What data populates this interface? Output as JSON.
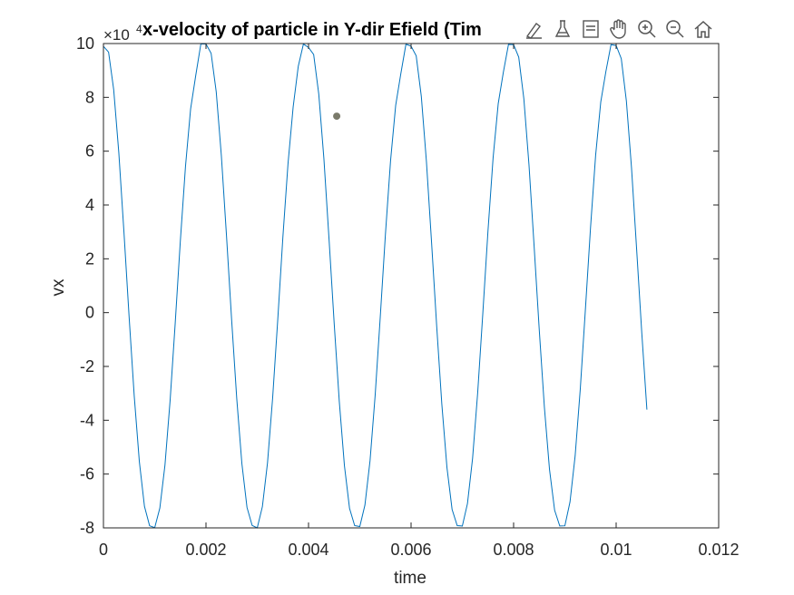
{
  "chart_data": {
    "type": "line",
    "title": "x-velocity of particle in Y-dir Efield (Tim",
    "xlabel": "time",
    "ylabel": "vx",
    "xlim": [
      0,
      0.012
    ],
    "ylim": [
      -8,
      10
    ],
    "y_exponent_base": "×10",
    "y_exponent_power": "4",
    "x_ticks": [
      "0",
      "0.002",
      "0.004",
      "0.006",
      "0.008",
      "0.01",
      "0.012"
    ],
    "y_ticks": [
      "10",
      "8",
      "6",
      "4",
      "2",
      "0",
      "-2",
      "-4",
      "-6",
      "-8"
    ],
    "x_tick_values": [
      0,
      0.002,
      0.004,
      0.006,
      0.008,
      0.01,
      0.012
    ],
    "y_tick_values": [
      10,
      8,
      6,
      4,
      2,
      0,
      -2,
      -4,
      -6,
      -8
    ],
    "series": [
      {
        "color": "#0072BD",
        "x": [
          0.0,
          0.0001,
          0.0002,
          0.0003,
          0.0004,
          0.0005,
          0.0006,
          0.0007,
          0.0008,
          0.0009,
          0.001,
          0.0011,
          0.0012,
          0.0013,
          0.0014,
          0.0015,
          0.0016,
          0.0017,
          0.0018,
          0.0019,
          0.002,
          0.0021,
          0.0022,
          0.0023,
          0.0024,
          0.0025,
          0.0026,
          0.0027,
          0.0028,
          0.0029,
          0.003,
          0.0031,
          0.0032,
          0.0033,
          0.0034,
          0.0035,
          0.0036,
          0.0037,
          0.0038,
          0.0039,
          0.004,
          0.0041,
          0.0042,
          0.0043,
          0.0044,
          0.0045,
          0.0046,
          0.0047,
          0.0048,
          0.0049,
          0.005,
          0.0051,
          0.0052,
          0.0053,
          0.0054,
          0.0055,
          0.0056,
          0.0057,
          0.0058,
          0.0059,
          0.006,
          0.0061,
          0.0062,
          0.0063,
          0.0064,
          0.0065,
          0.0066,
          0.0067,
          0.0068,
          0.0069,
          0.007,
          0.0071,
          0.0072,
          0.0073,
          0.0074,
          0.0075,
          0.0076,
          0.0077,
          0.0078,
          0.0079,
          0.008,
          0.0081,
          0.0082,
          0.0083,
          0.0084,
          0.0085,
          0.0086,
          0.0087,
          0.0088,
          0.0089,
          0.009,
          0.0091,
          0.0092,
          0.0093,
          0.0094,
          0.0095,
          0.0096,
          0.0097,
          0.0098,
          0.0099,
          0.01,
          0.0101,
          0.0102,
          0.0103,
          0.0104,
          0.0105,
          0.0106
        ],
        "y": [
          9.898,
          9.681,
          8.282,
          5.937,
          2.99,
          -0.139,
          -3.09,
          -5.533,
          -7.2,
          -7.921,
          -7.992,
          -7.263,
          -5.662,
          -3.275,
          -0.383,
          2.668,
          5.429,
          7.568,
          8.812,
          9.985,
          9.982,
          9.638,
          8.202,
          5.828,
          2.862,
          -0.262,
          -3.195,
          -5.609,
          -7.24,
          -7.908,
          -8.0,
          -7.21,
          -5.582,
          -3.171,
          -0.26,
          2.812,
          5.538,
          7.637,
          9.154,
          9.98,
          9.853,
          9.593,
          8.119,
          5.718,
          2.733,
          -0.386,
          -3.3,
          -5.683,
          -7.278,
          -7.915,
          -7.949,
          -7.154,
          -5.5,
          -3.066,
          -0.137,
          2.914,
          5.645,
          7.703,
          8.878,
          9.975,
          9.902,
          9.545,
          8.034,
          5.606,
          2.603,
          -0.509,
          -3.403,
          -5.755,
          -7.312,
          -7.917,
          -7.931,
          -7.096,
          -5.415,
          -2.96,
          -0.014,
          3.032,
          5.75,
          7.767,
          8.931,
          9.967,
          9.96,
          9.494,
          7.947,
          5.492,
          2.473,
          -0.631,
          -3.505,
          -5.825,
          -7.344,
          -7.928,
          -7.922,
          -7.035,
          -5.328,
          -2.853,
          0.109,
          3.147,
          5.853,
          7.828,
          8.962,
          9.958,
          9.926,
          9.441,
          7.857,
          5.376,
          2.342,
          -0.752,
          -3.605
        ]
      }
    ],
    "marker": {
      "x": 0.00455,
      "y": 7.3,
      "color": "#7a7a6a"
    }
  },
  "toolbar": {
    "items": [
      "brush-icon",
      "datatip-icon",
      "legend-icon",
      "pan-icon",
      "zoom-in-icon",
      "zoom-out-icon",
      "home-icon"
    ]
  }
}
